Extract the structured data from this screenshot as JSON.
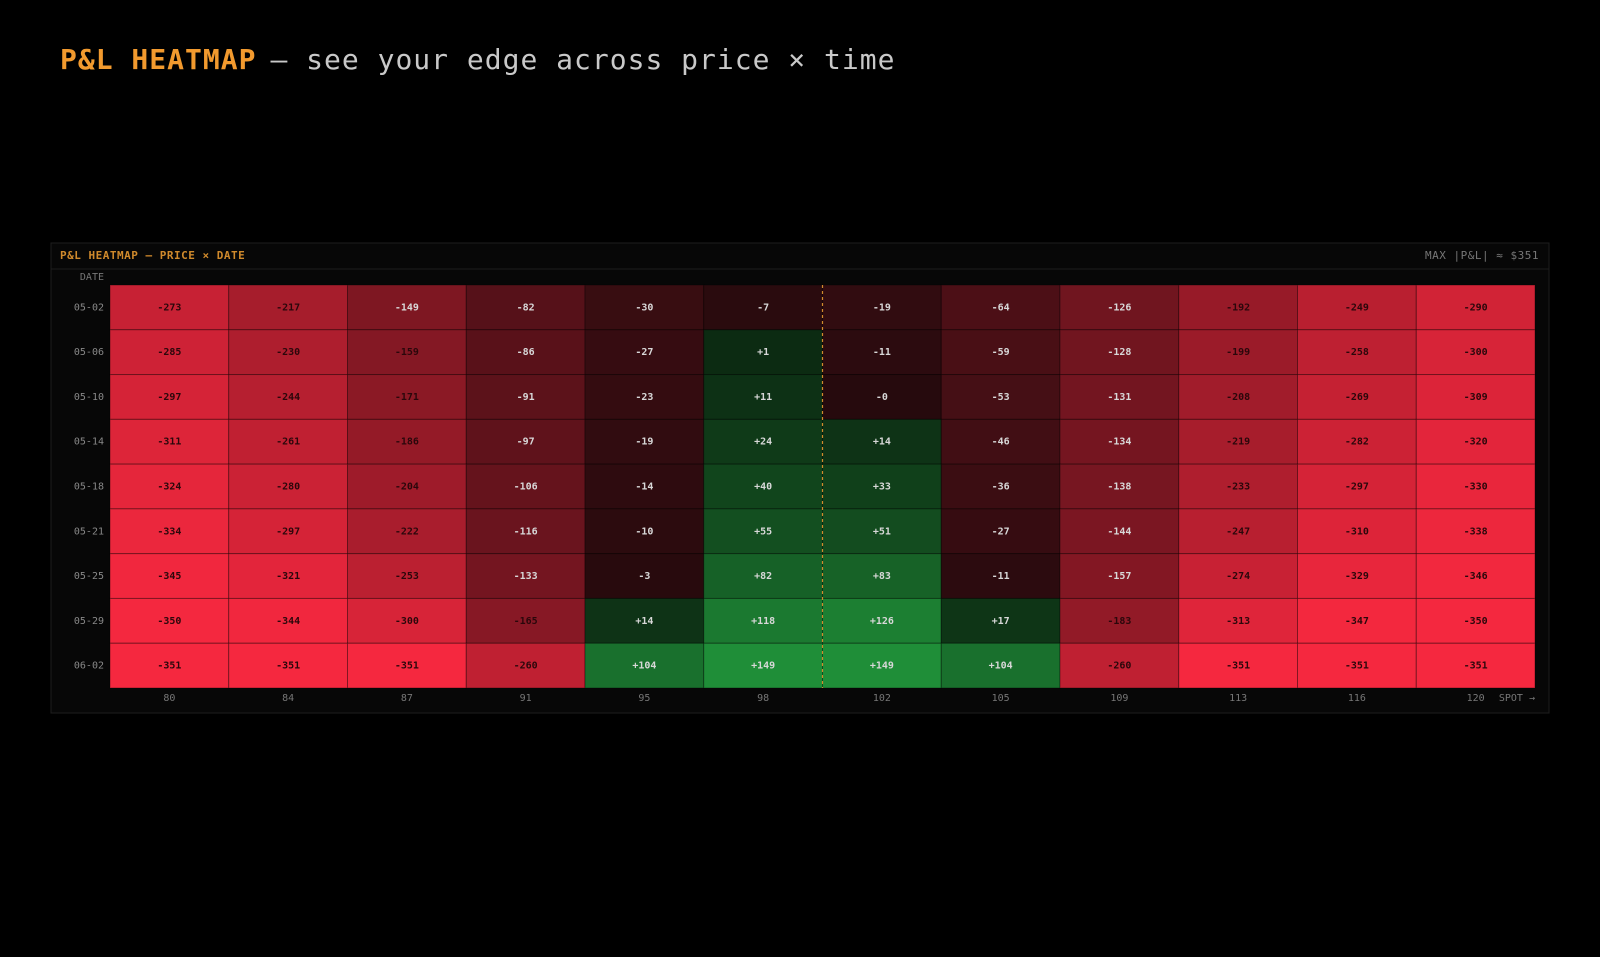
{
  "header": {
    "title": "P&L HEATMAP",
    "subtitle": "— see your edge across price × time"
  },
  "chart_data": {
    "type": "heatmap",
    "title": "P&L HEATMAP — PRICE × DATE",
    "annotation": "MAX |P&L| ≈ $351",
    "y_label": "DATE",
    "x_note": "SPOT →",
    "colors": {
      "negative": "#f5283f",
      "positive": "#1f8e38",
      "neutral_negative": "#260a0d",
      "neutral_positive": "#0c2a12"
    },
    "categories": [
      "80",
      "84",
      "87",
      "91",
      "95",
      "98",
      "102",
      "105",
      "109",
      "113",
      "116",
      "120"
    ],
    "rows": [
      "05-02",
      "05-06",
      "05-10",
      "05-14",
      "05-18",
      "05-21",
      "05-25",
      "05-29",
      "06-02"
    ],
    "values": [
      [
        -273,
        -217,
        -149,
        -82,
        -30,
        -7,
        -19,
        -64,
        -126,
        -192,
        -249,
        -290
      ],
      [
        -285,
        -230,
        -159,
        -86,
        -27,
        1,
        -11,
        -59,
        -128,
        -199,
        -258,
        -300
      ],
      [
        -297,
        -244,
        -171,
        -91,
        -23,
        11,
        0,
        -53,
        -131,
        -208,
        -269,
        -309
      ],
      [
        -311,
        -261,
        -186,
        -97,
        -19,
        24,
        14,
        -46,
        -134,
        -219,
        -282,
        -320
      ],
      [
        -324,
        -280,
        -204,
        -106,
        -14,
        40,
        33,
        -36,
        -138,
        -233,
        -297,
        -330
      ],
      [
        -334,
        -297,
        -222,
        -116,
        -10,
        55,
        51,
        -27,
        -144,
        -247,
        -310,
        -338
      ],
      [
        -345,
        -321,
        -253,
        -133,
        -3,
        82,
        83,
        -11,
        -157,
        -274,
        -329,
        -346
      ],
      [
        -350,
        -344,
        -300,
        -165,
        14,
        118,
        126,
        17,
        -183,
        -313,
        -347,
        -350
      ],
      [
        -351,
        -351,
        -351,
        -260,
        104,
        149,
        149,
        104,
        -260,
        -351,
        -351,
        -351
      ]
    ],
    "value_labels": [
      [
        "-273",
        "-217",
        "-149",
        "-82",
        "-30",
        "-7",
        "-19",
        "-64",
        "-126",
        "-192",
        "-249",
        "-290"
      ],
      [
        "-285",
        "-230",
        "-159",
        "-86",
        "-27",
        "+1",
        "-11",
        "-59",
        "-128",
        "-199",
        "-258",
        "-300"
      ],
      [
        "-297",
        "-244",
        "-171",
        "-91",
        "-23",
        "+11",
        "-0",
        "-53",
        "-131",
        "-208",
        "-269",
        "-309"
      ],
      [
        "-311",
        "-261",
        "-186",
        "-97",
        "-19",
        "+24",
        "+14",
        "-46",
        "-134",
        "-219",
        "-282",
        "-320"
      ],
      [
        "-324",
        "-280",
        "-204",
        "-106",
        "-14",
        "+40",
        "+33",
        "-36",
        "-138",
        "-233",
        "-297",
        "-330"
      ],
      [
        "-334",
        "-297",
        "-222",
        "-116",
        "-10",
        "+55",
        "+51",
        "-27",
        "-144",
        "-247",
        "-310",
        "-338"
      ],
      [
        "-345",
        "-321",
        "-253",
        "-133",
        "-3",
        "+82",
        "+83",
        "-11",
        "-157",
        "-274",
        "-329",
        "-346"
      ],
      [
        "-350",
        "-344",
        "-300",
        "-165",
        "+14",
        "+118",
        "+126",
        "+17",
        "-183",
        "-313",
        "-347",
        "-350"
      ],
      [
        "-351",
        "-351",
        "-351",
        "-260",
        "+104",
        "+149",
        "+149",
        "+104",
        "-260",
        "-351",
        "-351",
        "-351"
      ]
    ]
  }
}
